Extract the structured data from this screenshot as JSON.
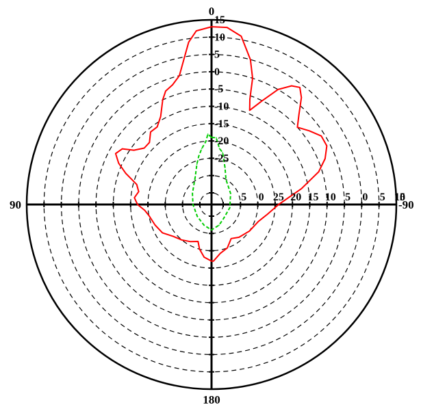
{
  "chart_data": {
    "type": "polar",
    "grid": true,
    "r_range": [
      -35,
      15
    ],
    "r_ticks": [
      -35,
      -30,
      -25,
      -20,
      -15,
      -10,
      -5,
      0,
      5,
      10,
      15
    ],
    "r_tick_labels_up": [
      {
        "r": 15,
        "label": "15"
      },
      {
        "r": 10,
        "label": "10"
      },
      {
        "r": 5,
        "label": "5"
      },
      {
        "r": 0,
        "label": "0"
      },
      {
        "r": -5,
        "label": "-5"
      },
      {
        "r": -10,
        "label": "-10"
      },
      {
        "r": -15,
        "label": "-15"
      },
      {
        "r": -20,
        "label": "-20"
      },
      {
        "r": -25,
        "label": "-25"
      }
    ],
    "r_tick_labels_right": [
      {
        "r": -30,
        "label": "5"
      },
      {
        "r": -25,
        "label": "0"
      },
      {
        "r": -20,
        "label": "25"
      },
      {
        "r": -15,
        "label": "20"
      },
      {
        "r": -10,
        "label": "15"
      },
      {
        "r": -5,
        "label": "10"
      },
      {
        "r": 0,
        "label": "5"
      },
      {
        "r": 5,
        "label": "0"
      },
      {
        "r": 10,
        "label": "5"
      },
      {
        "r": 15,
        "label": "10"
      },
      {
        "r": 20,
        "label": "15"
      }
    ],
    "angle_labels": [
      {
        "deg": 0,
        "label": "0"
      },
      {
        "deg": 90,
        "label": "90"
      },
      {
        "deg": 180,
        "label": "180"
      },
      {
        "deg": -90,
        "label": "-90"
      }
    ],
    "series": [
      {
        "color": "#ff0000",
        "points": [
          [
            0,
            13
          ],
          [
            -5,
            13
          ],
          [
            -10,
            11
          ],
          [
            -15,
            5
          ],
          [
            -18,
            0
          ],
          [
            -20,
            -6
          ],
          [
            -22,
            -9
          ],
          [
            -26,
            -5
          ],
          [
            -30,
            0
          ],
          [
            -34,
            3
          ],
          [
            -37,
            4
          ],
          [
            -40,
            2
          ],
          [
            -44,
            -2
          ],
          [
            -48,
            -5
          ],
          [
            -53,
            -3
          ],
          [
            -58,
            -1
          ],
          [
            -63,
            -1
          ],
          [
            -68,
            -3
          ],
          [
            -73,
            -6
          ],
          [
            -80,
            -12
          ],
          [
            -90,
            -19
          ],
          [
            -100,
            -22
          ],
          [
            -110,
            -24
          ],
          [
            -125,
            -25
          ],
          [
            -140,
            -26
          ],
          [
            -150,
            -27
          ],
          [
            -160,
            -25
          ],
          [
            -170,
            -24
          ],
          [
            -178,
            -22
          ],
          [
            180,
            -22
          ],
          [
            172,
            -23
          ],
          [
            165,
            -25
          ],
          [
            160,
            -27
          ],
          [
            150,
            -26
          ],
          [
            140,
            -25
          ],
          [
            130,
            -24
          ],
          [
            120,
            -22
          ],
          [
            110,
            -21
          ],
          [
            100,
            -20
          ],
          [
            95,
            -19
          ],
          [
            90,
            -17
          ],
          [
            85,
            -16
          ],
          [
            80,
            -17
          ],
          [
            75,
            -16
          ],
          [
            70,
            -12
          ],
          [
            66,
            -9
          ],
          [
            62,
            -7
          ],
          [
            58,
            -8
          ],
          [
            55,
            -11
          ],
          [
            50,
            -13
          ],
          [
            45,
            -13
          ],
          [
            40,
            -11
          ],
          [
            35,
            -11
          ],
          [
            30,
            -9
          ],
          [
            25,
            -5
          ],
          [
            22,
            -3
          ],
          [
            18,
            -2
          ],
          [
            14,
            0
          ],
          [
            11,
            4
          ],
          [
            8,
            9
          ],
          [
            5,
            12
          ],
          [
            0,
            13
          ]
        ]
      },
      {
        "color": "#00cc00",
        "points": [
          [
            0,
            -19
          ],
          [
            -4,
            -19
          ],
          [
            -8,
            -22
          ],
          [
            -12,
            -23
          ],
          [
            -20,
            -27
          ],
          [
            -30,
            -30
          ],
          [
            -60,
            -32
          ],
          [
            -100,
            -33
          ],
          [
            -140,
            -33
          ],
          [
            -160,
            -32
          ],
          [
            180,
            -31
          ],
          [
            160,
            -32
          ],
          [
            130,
            -33
          ],
          [
            90,
            -33
          ],
          [
            60,
            -32
          ],
          [
            30,
            -29
          ],
          [
            20,
            -26
          ],
          [
            15,
            -24
          ],
          [
            10,
            -22
          ],
          [
            5,
            -20
          ],
          [
            3,
            -18
          ],
          [
            0,
            -19
          ]
        ]
      }
    ]
  }
}
